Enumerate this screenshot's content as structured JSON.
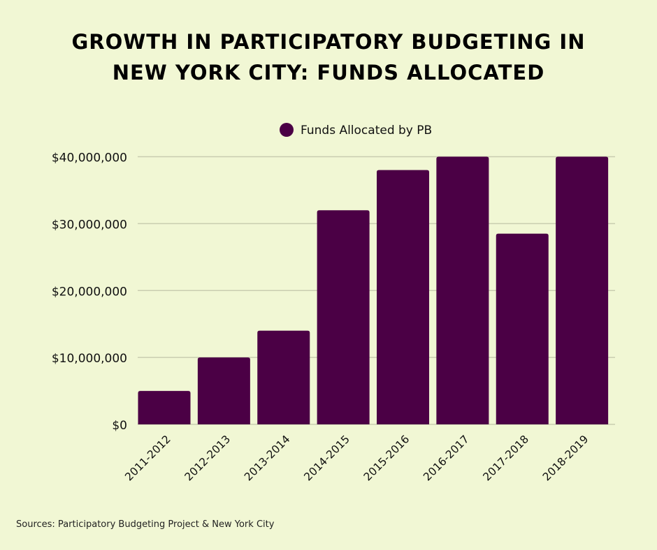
{
  "chart_data": {
    "type": "bar",
    "title": "GROWTH IN PARTICIPATORY BUDGETING IN NEW YORK CITY: FUNDS ALLOCATED",
    "title_lines": [
      "GROWTH IN PARTICIPATORY BUDGETING IN",
      "NEW YORK CITY: FUNDS ALLOCATED"
    ],
    "categories": [
      "2011-2012",
      "2012-2013",
      "2013-2014",
      "2014-2015",
      "2015-2016",
      "2016-2017",
      "2017-2018",
      "2018-2019"
    ],
    "series": [
      {
        "name": "Funds Allocated by PB",
        "color": "#4b0045",
        "values": [
          5000000,
          10000000,
          14000000,
          32000000,
          38000000,
          40000000,
          28500000,
          40000000
        ]
      }
    ],
    "yticks": [
      0,
      10000000,
      20000000,
      30000000,
      40000000
    ],
    "ytick_labels": [
      "$0",
      "$10,000,000",
      "$20,000,000",
      "$30,000,000",
      "$40,000,000"
    ],
    "ylim": [
      0,
      40000000
    ],
    "xlabel": "",
    "ylabel": "",
    "grid": true,
    "legend": "top-center",
    "background": "#f1f7d4",
    "source": "Sources: Participatory Budgeting Project & New York City"
  }
}
